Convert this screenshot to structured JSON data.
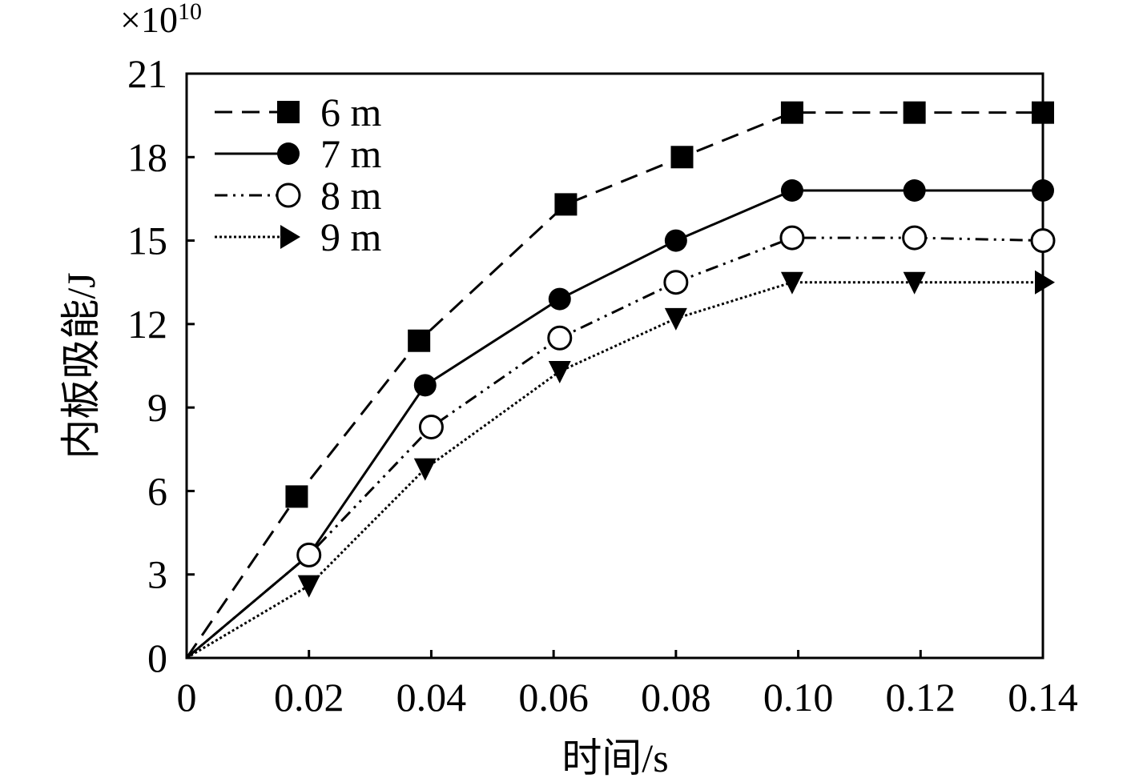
{
  "chart_data": {
    "type": "line",
    "xlabel": "时间/s",
    "ylabel": "内板吸能/J",
    "y_multiplier": "×10",
    "y_exponent": "10",
    "xlim": [
      0,
      0.14
    ],
    "ylim": [
      0,
      21
    ],
    "x_ticks": [
      0,
      0.02,
      0.04,
      0.06,
      0.08,
      0.1,
      0.12,
      0.14
    ],
    "x_tick_labels": [
      "0",
      "0.02",
      "0.04",
      "0.06",
      "0.08",
      "0.10",
      "0.12",
      "0.14"
    ],
    "y_ticks": [
      0,
      3,
      6,
      9,
      12,
      15,
      18,
      21
    ],
    "y_tick_labels": [
      "0",
      "3",
      "6",
      "9",
      "12",
      "15",
      "18",
      "21"
    ],
    "grid": false,
    "legend_position": "top-left",
    "series": [
      {
        "name": "6 m",
        "line_style": "dashed",
        "marker": "square-filled",
        "x": [
          0,
          0.018,
          0.038,
          0.062,
          0.081,
          0.099,
          0.119,
          0.14
        ],
        "y": [
          0,
          5.8,
          11.4,
          16.3,
          18.0,
          19.6,
          19.6,
          19.6
        ]
      },
      {
        "name": "7 m",
        "line_style": "solid",
        "marker": "circle-filled",
        "x": [
          0,
          0.02,
          0.039,
          0.061,
          0.08,
          0.099,
          0.119,
          0.14
        ],
        "y": [
          0,
          3.7,
          9.8,
          12.9,
          15.0,
          16.8,
          16.8,
          16.8
        ]
      },
      {
        "name": "8 m",
        "line_style": "dash-dot-dot",
        "marker": "circle-open",
        "x": [
          0,
          0.02,
          0.04,
          0.061,
          0.08,
          0.099,
          0.119,
          0.14
        ],
        "y": [
          0,
          3.7,
          8.3,
          11.5,
          13.5,
          15.1,
          15.1,
          15.0
        ]
      },
      {
        "name": "9 m",
        "line_style": "dotted",
        "marker": "triangle-filled",
        "x": [
          0,
          0.02,
          0.039,
          0.061,
          0.08,
          0.099,
          0.119,
          0.14
        ],
        "y": [
          0,
          2.6,
          6.8,
          10.3,
          12.2,
          13.5,
          13.5,
          13.5
        ]
      }
    ]
  }
}
